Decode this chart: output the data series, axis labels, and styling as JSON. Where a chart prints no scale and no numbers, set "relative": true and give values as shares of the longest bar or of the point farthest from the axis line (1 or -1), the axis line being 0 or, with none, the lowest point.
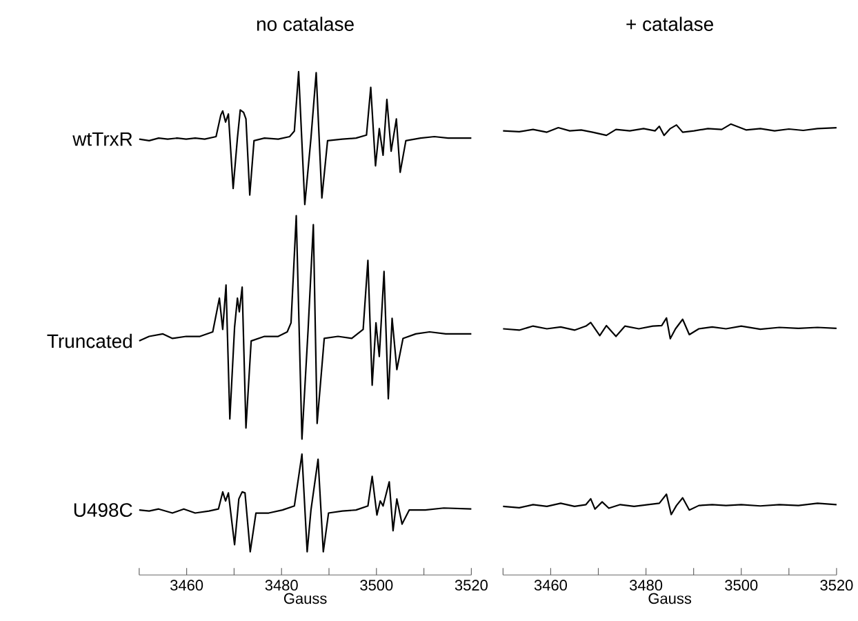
{
  "chart_data": [
    {
      "type": "line",
      "title": "no catalase",
      "xlabel": "Gauss",
      "relative": true,
      "xlim": [
        3450,
        3520
      ],
      "legend": false,
      "xticks": [
        {
          "value": 3450,
          "label": null
        },
        3460,
        {
          "value": 3470,
          "label": null
        },
        3480,
        {
          "value": 3490,
          "label": null
        },
        3500,
        {
          "value": 3510,
          "label": null
        },
        3520
      ],
      "series": [
        {
          "name": "wtTrxR",
          "color": "#000000",
          "x": [
            3450,
            3452.1,
            3454.1,
            3456,
            3458,
            3459.9,
            3461.8,
            3463.8,
            3466.2,
            3467.2,
            3467.6,
            3468.2,
            3468.8,
            3469.8,
            3470.7,
            3471.3,
            3472,
            3472.5,
            3473.3,
            3474.2,
            3476.4,
            3479.3,
            3481.7,
            3482.7,
            3483.6,
            3484.9,
            3486.2,
            3487.3,
            3488.5,
            3489.7,
            3492.8,
            3495.7,
            3497.9,
            3498.8,
            3499.8,
            3500.6,
            3501.4,
            3502.2,
            3503.1,
            3504.2,
            3505,
            3506.2,
            3509.3,
            3512.2,
            3515.1,
            3520
          ],
          "values": [
            0.866,
            0.863,
            0.868,
            0.866,
            0.868,
            0.866,
            0.868,
            0.866,
            0.871,
            0.914,
            0.922,
            0.9,
            0.916,
            0.768,
            0.868,
            0.924,
            0.919,
            0.906,
            0.755,
            0.863,
            0.868,
            0.866,
            0.871,
            0.882,
            1.0,
            0.736,
            0.868,
            0.998,
            0.749,
            0.863,
            0.866,
            0.868,
            0.874,
            0.969,
            0.813,
            0.887,
            0.834,
            0.945,
            0.842,
            0.906,
            0.8,
            0.863,
            0.868,
            0.871,
            0.868,
            0.868
          ]
        },
        {
          "name": "Truncated",
          "color": "#000000",
          "x": [
            3450,
            3452.1,
            3455,
            3457,
            3459.9,
            3462.8,
            3465.5,
            3466.9,
            3467.6,
            3468.3,
            3469.1,
            3470.1,
            3470.7,
            3471.1,
            3471.7,
            3472.5,
            3473.6,
            3476.4,
            3479.3,
            3481.2,
            3482,
            3483.1,
            3484.3,
            3485.6,
            3486.7,
            3487.5,
            3489,
            3491.9,
            3494.8,
            3497.2,
            3498.2,
            3499.1,
            3499.9,
            3500.6,
            3501.6,
            3502.5,
            3503.3,
            3504.3,
            3505.6,
            3508.3,
            3511.2,
            3514.6,
            3520
          ],
          "values": [
            0.465,
            0.474,
            0.479,
            0.47,
            0.474,
            0.474,
            0.483,
            0.55,
            0.488,
            0.576,
            0.31,
            0.492,
            0.55,
            0.523,
            0.572,
            0.292,
            0.465,
            0.474,
            0.474,
            0.483,
            0.501,
            0.714,
            0.27,
            0.488,
            0.696,
            0.301,
            0.47,
            0.474,
            0.47,
            0.488,
            0.625,
            0.377,
            0.501,
            0.434,
            0.603,
            0.35,
            0.51,
            0.408,
            0.47,
            0.479,
            0.483,
            0.479,
            0.479
          ]
        },
        {
          "name": "U498C",
          "color": "#000000",
          "x": [
            3450,
            3452.1,
            3454.1,
            3457,
            3459.4,
            3461.8,
            3464.7,
            3466.7,
            3467.6,
            3468.2,
            3468.8,
            3470.1,
            3471,
            3471.7,
            3472.3,
            3473.4,
            3474.6,
            3477.3,
            3480.2,
            3482.7,
            3484.3,
            3485.4,
            3486.2,
            3487.7,
            3488.8,
            3489.9,
            3492.8,
            3495.7,
            3498.2,
            3499.1,
            3500.1,
            3500.8,
            3501.4,
            3502.7,
            3503.5,
            3504.3,
            3505.4,
            3506.9,
            3510.3,
            3514.2,
            3520
          ],
          "values": [
            0.129,
            0.127,
            0.131,
            0.123,
            0.131,
            0.123,
            0.127,
            0.131,
            0.165,
            0.147,
            0.163,
            0.06,
            0.151,
            0.165,
            0.163,
            0.046,
            0.123,
            0.123,
            0.129,
            0.137,
            0.24,
            0.046,
            0.129,
            0.23,
            0.046,
            0.123,
            0.127,
            0.129,
            0.137,
            0.196,
            0.119,
            0.147,
            0.137,
            0.185,
            0.088,
            0.151,
            0.101,
            0.129,
            0.129,
            0.133,
            0.131
          ]
        }
      ]
    },
    {
      "type": "line",
      "title": "+ catalase",
      "xlabel": "Gauss",
      "relative": true,
      "xlim": [
        3450,
        3520
      ],
      "legend": false,
      "xticks": [
        {
          "value": 3450,
          "label": null
        },
        3460,
        {
          "value": 3470,
          "label": null
        },
        3480,
        {
          "value": 3490,
          "label": null
        },
        3500,
        {
          "value": 3510,
          "label": null
        },
        3520
      ],
      "series": [
        {
          "color": "#000000",
          "x": [
            3450,
            3453.4,
            3456.3,
            3459.2,
            3461.6,
            3464,
            3466.4,
            3468.8,
            3471.7,
            3473.7,
            3476.6,
            3479.5,
            3481.9,
            3482.8,
            3483.8,
            3485.1,
            3486.4,
            3487.7,
            3490.1,
            3493,
            3495.9,
            3497.8,
            3501,
            3504,
            3507,
            3510,
            3513,
            3516,
            3520
          ],
          "values": [
            0.985,
            0.983,
            0.988,
            0.982,
            0.992,
            0.985,
            0.987,
            0.982,
            0.975,
            0.988,
            0.985,
            0.99,
            0.985,
            0.995,
            0.975,
            0.99,
            0.998,
            0.982,
            0.985,
            0.99,
            0.988,
            1.0,
            0.987,
            0.99,
            0.985,
            0.989,
            0.986,
            0.99,
            0.992
          ]
        },
        {
          "color": "#000000",
          "x": [
            3450,
            3453.4,
            3456.3,
            3459.2,
            3462.1,
            3465,
            3467.4,
            3468.4,
            3470.3,
            3471.7,
            3473.7,
            3475.6,
            3478.5,
            3481.4,
            3483.3,
            3484.3,
            3485.1,
            3486.2,
            3487.7,
            3489.1,
            3491.1,
            3493.9,
            3496.8,
            3500,
            3504,
            3508,
            3512,
            3516,
            3520
          ],
          "values": [
            0.546,
            0.543,
            0.552,
            0.546,
            0.55,
            0.543,
            0.552,
            0.56,
            0.531,
            0.553,
            0.529,
            0.552,
            0.546,
            0.552,
            0.553,
            0.57,
            0.524,
            0.546,
            0.567,
            0.533,
            0.546,
            0.55,
            0.546,
            0.552,
            0.545,
            0.549,
            0.547,
            0.549,
            0.547
          ]
        },
        {
          "color": "#000000",
          "x": [
            3450,
            3453.4,
            3456.3,
            3459.2,
            3462.1,
            3465,
            3467.4,
            3468.4,
            3469.3,
            3470.8,
            3472.2,
            3474.6,
            3477.5,
            3480.4,
            3482.8,
            3484.3,
            3485.3,
            3486.4,
            3487.7,
            3489.1,
            3491.1,
            3493.9,
            3496.8,
            3500,
            3504,
            3508,
            3512,
            3516,
            3520
          ],
          "values": [
            0.152,
            0.149,
            0.156,
            0.152,
            0.159,
            0.152,
            0.156,
            0.169,
            0.146,
            0.162,
            0.148,
            0.156,
            0.152,
            0.156,
            0.159,
            0.179,
            0.134,
            0.154,
            0.171,
            0.144,
            0.154,
            0.156,
            0.154,
            0.156,
            0.153,
            0.156,
            0.154,
            0.159,
            0.156
          ]
        }
      ]
    }
  ]
}
